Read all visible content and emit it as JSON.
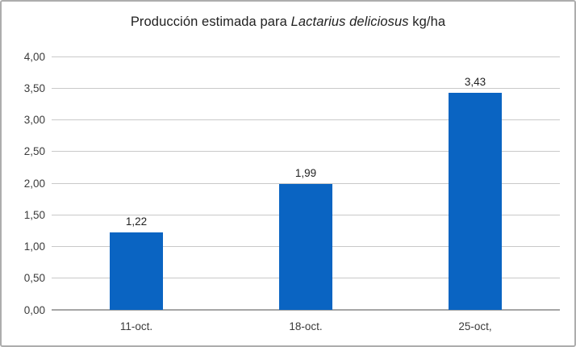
{
  "chart_data": {
    "type": "bar",
    "title": "Producción estimada para Lactarius deliciosus kg/ha",
    "title_parts": {
      "prefix": "Producción estimada para ",
      "italic": "Lactarius deliciosus",
      "suffix": " kg/ha"
    },
    "categories": [
      "11-oct.",
      "18-oct.",
      "25-oct,"
    ],
    "values": [
      1.22,
      1.99,
      3.43
    ],
    "value_labels": [
      "1,22",
      "1,99",
      "3,43"
    ],
    "y_ticks": [
      {
        "value": 0.0,
        "label": "0,00"
      },
      {
        "value": 0.5,
        "label": "0,50"
      },
      {
        "value": 1.0,
        "label": "1,00"
      },
      {
        "value": 1.5,
        "label": "1,50"
      },
      {
        "value": 2.0,
        "label": "2,00"
      },
      {
        "value": 2.5,
        "label": "2,50"
      },
      {
        "value": 3.0,
        "label": "3,00"
      },
      {
        "value": 3.5,
        "label": "3,50"
      },
      {
        "value": 4.0,
        "label": "4,00"
      }
    ],
    "ylim": [
      0,
      4
    ],
    "xlabel": "",
    "ylabel": "",
    "grid": true,
    "legend": "none",
    "colors": {
      "bar": "#0a64c2",
      "gridline": "#c9c9c9",
      "axis_line": "#a6a6a6",
      "frame_border": "#adadad",
      "tick_text": "#3b3b3b",
      "title_text": "#212121",
      "value_text": "#1f1f1f"
    }
  }
}
